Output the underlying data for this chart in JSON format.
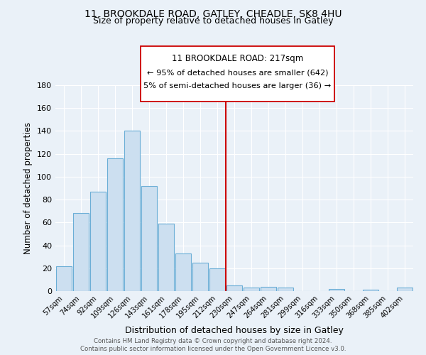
{
  "title": "11, BROOKDALE ROAD, GATLEY, CHEADLE, SK8 4HU",
  "subtitle": "Size of property relative to detached houses in Gatley",
  "xlabel": "Distribution of detached houses by size in Gatley",
  "ylabel": "Number of detached properties",
  "bar_labels": [
    "57sqm",
    "74sqm",
    "92sqm",
    "109sqm",
    "126sqm",
    "143sqm",
    "161sqm",
    "178sqm",
    "195sqm",
    "212sqm",
    "230sqm",
    "247sqm",
    "264sqm",
    "281sqm",
    "299sqm",
    "316sqm",
    "333sqm",
    "350sqm",
    "368sqm",
    "385sqm",
    "402sqm"
  ],
  "bar_values": [
    22,
    68,
    87,
    116,
    140,
    92,
    59,
    33,
    25,
    20,
    5,
    3,
    4,
    3,
    0,
    0,
    2,
    0,
    1,
    0,
    3
  ],
  "bar_color": "#ccdff0",
  "bar_edge_color": "#6baed6",
  "ylim": [
    0,
    180
  ],
  "yticks": [
    0,
    20,
    40,
    60,
    80,
    100,
    120,
    140,
    160,
    180
  ],
  "vline_x": 9.5,
  "vline_color": "#cc0000",
  "annotation_title": "11 BROOKDALE ROAD: 217sqm",
  "annotation_line1": "← 95% of detached houses are smaller (642)",
  "annotation_line2": "5% of semi-detached houses are larger (36) →",
  "footer1": "Contains HM Land Registry data © Crown copyright and database right 2024.",
  "footer2": "Contains public sector information licensed under the Open Government Licence v3.0.",
  "background_color": "#eaf1f8",
  "grid_color": "#ffffff",
  "title_fontsize": 10,
  "subtitle_fontsize": 9
}
